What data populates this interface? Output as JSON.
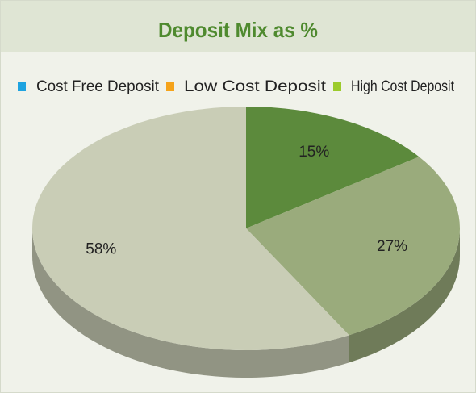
{
  "chart_data": {
    "type": "pie3d",
    "title": "Deposit Mix as %",
    "categories": [
      "Cost Free Deposit",
      "Low Cost Deposit",
      "High Cost Deposit"
    ],
    "legend_colors": [
      "#1ea3e0",
      "#f5a31a",
      "#9ccb2c"
    ],
    "values": [
      15,
      27,
      58
    ],
    "value_labels": [
      "15%",
      "27%",
      "58%"
    ],
    "colors": [
      "#5c8a3c",
      "#9aab7c",
      "#c9cdb6"
    ],
    "legend": "top"
  }
}
